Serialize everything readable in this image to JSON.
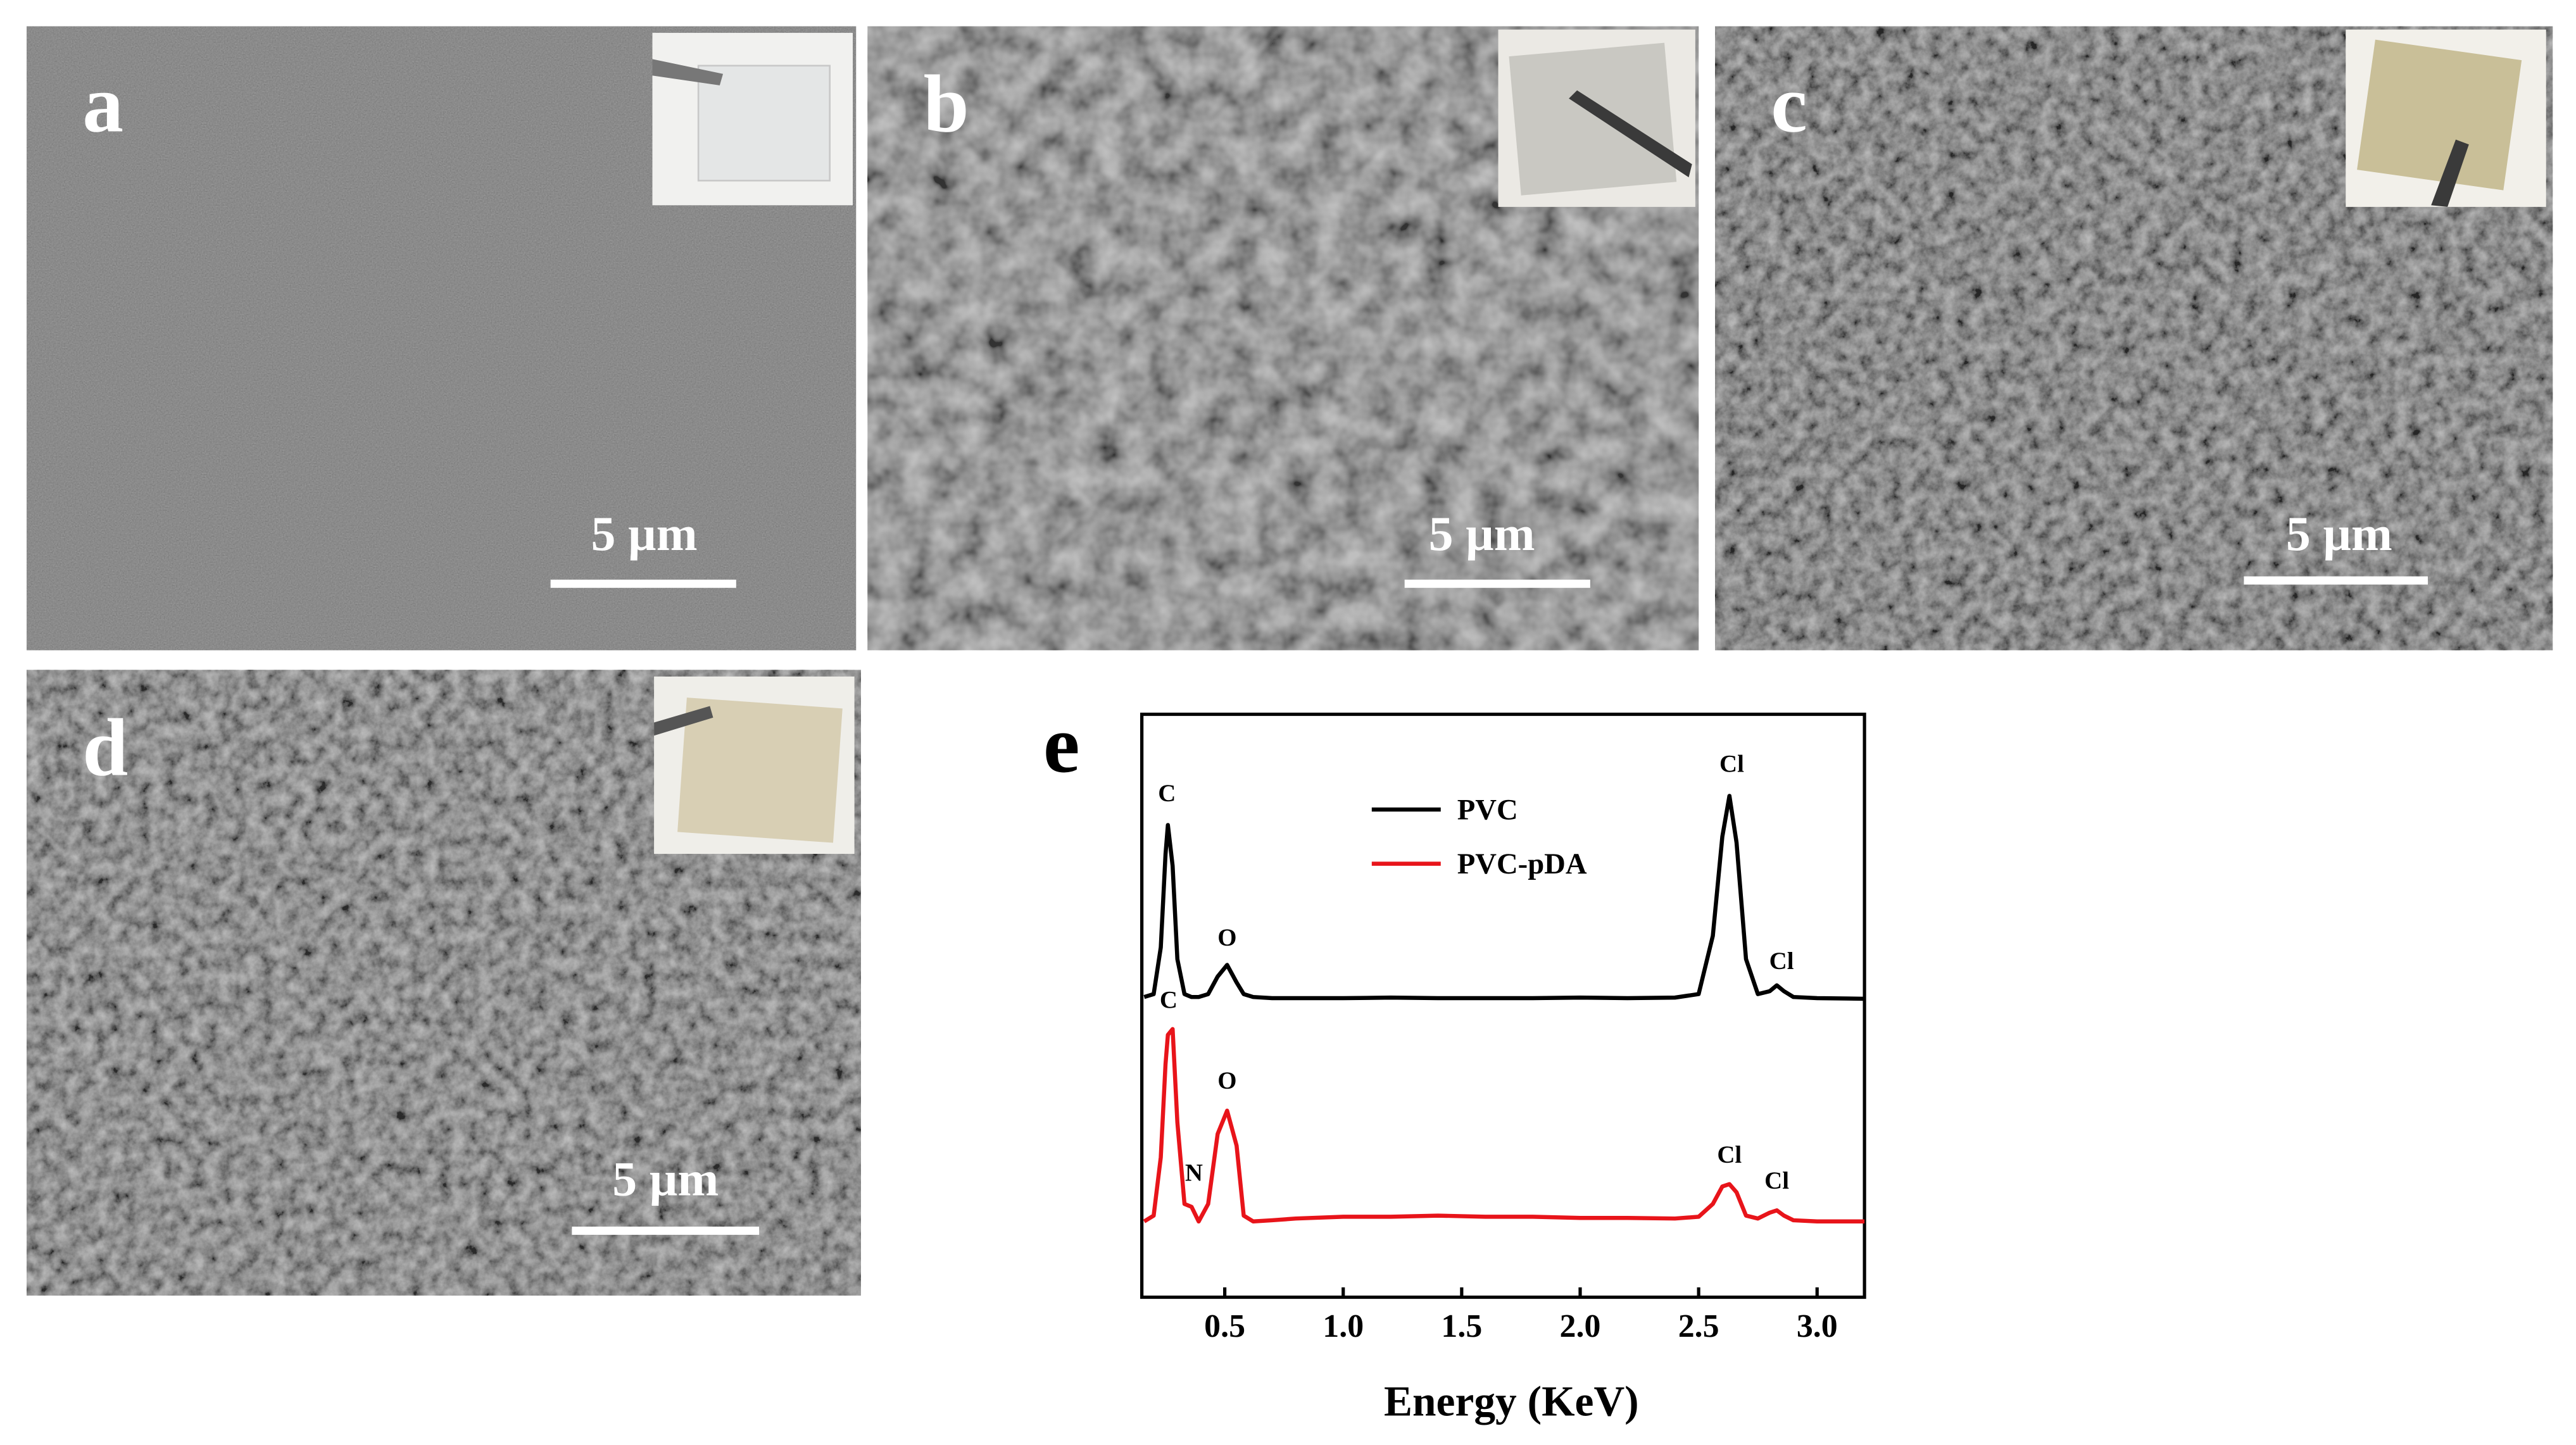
{
  "panels": [
    {
      "label": "a",
      "scale_bar": "5 µm"
    },
    {
      "label": "b",
      "scale_bar": "5 µm"
    },
    {
      "label": "c",
      "scale_bar": "5 µm"
    },
    {
      "label": "d",
      "scale_bar": "5 µm"
    }
  ],
  "chart_data": {
    "type": "line",
    "panel_label": "e",
    "x_label": "Energy (KeV)",
    "x": [
      0.16,
      0.2,
      0.23,
      0.25,
      0.26,
      0.28,
      0.3,
      0.33,
      0.36,
      0.39,
      0.43,
      0.47,
      0.51,
      0.55,
      0.58,
      0.62,
      0.7,
      0.8,
      1.0,
      1.2,
      1.4,
      1.6,
      1.8,
      2.0,
      2.2,
      2.4,
      2.5,
      2.56,
      2.6,
      2.63,
      2.66,
      2.7,
      2.75,
      2.8,
      2.83,
      2.86,
      2.9,
      3.0,
      3.2
    ],
    "series": [
      {
        "name": "PVC",
        "color": "#000000",
        "values": [
          51.5,
          52,
          60,
          76,
          81,
          74,
          58,
          52,
          51.5,
          51.5,
          52,
          55,
          57,
          54,
          52,
          51.5,
          51.3,
          51.3,
          51.3,
          51.4,
          51.3,
          51.3,
          51.3,
          51.4,
          51.3,
          51.4,
          52,
          62,
          79,
          86,
          78,
          58,
          52,
          52.5,
          53.5,
          52.5,
          51.5,
          51.3,
          51.2
        ]
      },
      {
        "name": "PVC-pDA",
        "color": "#e8141a",
        "values": [
          13,
          14,
          24,
          40,
          45,
          46,
          30,
          16,
          15.5,
          13,
          16,
          28,
          32,
          26,
          14,
          13,
          13.2,
          13.5,
          13.8,
          13.8,
          14,
          13.8,
          13.8,
          13.6,
          13.6,
          13.5,
          13.8,
          16,
          19,
          19.4,
          18,
          14,
          13.5,
          14.5,
          14.9,
          14,
          13.2,
          13,
          13
        ]
      }
    ],
    "annotations": [
      {
        "text": "C",
        "x": 0.256,
        "y": 85.1
      },
      {
        "text": "O",
        "x": 0.51,
        "y": 60.3
      },
      {
        "text": "Cl",
        "x": 2.64,
        "y": 90.1
      },
      {
        "text": "Cl",
        "x": 2.85,
        "y": 56.3
      },
      {
        "text": "C",
        "x": 0.263,
        "y": 49.6
      },
      {
        "text": "N",
        "x": 0.37,
        "y": 20
      },
      {
        "text": "O",
        "x": 0.51,
        "y": 35.8
      },
      {
        "text": "Cl",
        "x": 2.63,
        "y": 23.1
      },
      {
        "text": "Cl",
        "x": 2.83,
        "y": 18.6
      }
    ],
    "xlim": [
      0.15,
      3.2
    ],
    "ylim": [
      0,
      100
    ],
    "xticks": [
      0.5,
      {
        "value": 1,
        "label": "1.0"
      },
      1.5,
      {
        "value": 2,
        "label": "2.0"
      },
      2.5,
      {
        "value": 3,
        "label": "3.0"
      }
    ],
    "legend": "upper center"
  }
}
